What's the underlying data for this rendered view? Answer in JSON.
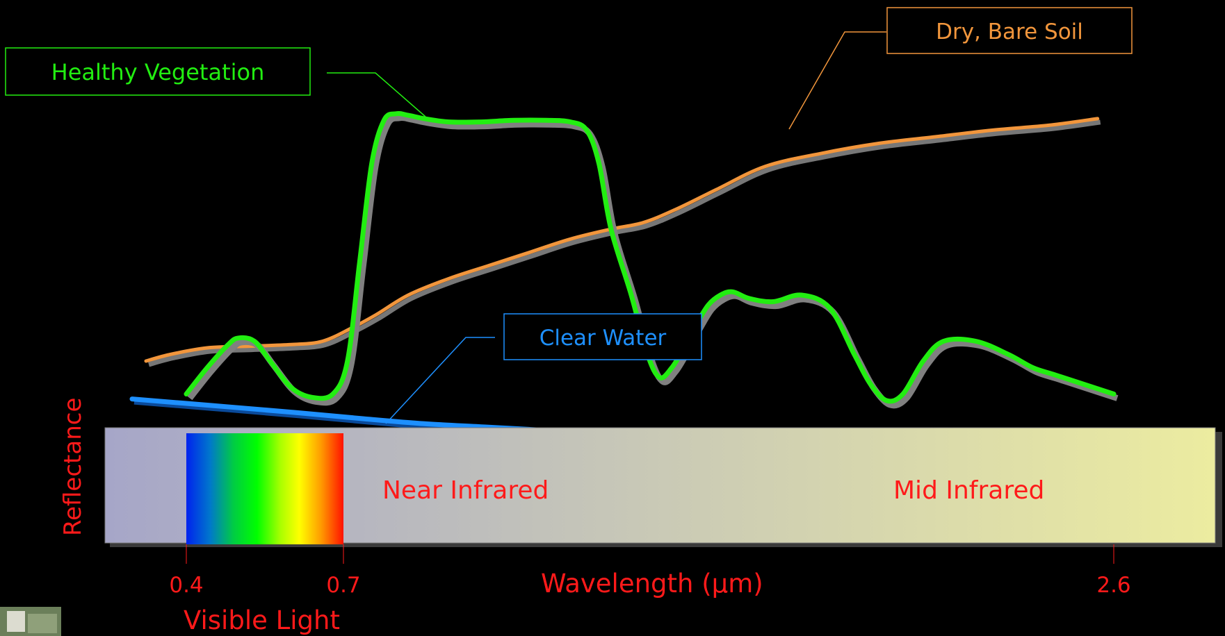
{
  "chart_data": {
    "type": "line",
    "title": "",
    "xlabel": "Wavelength (µm)",
    "ylabel": "Reflectance",
    "grid": false,
    "legend": "callout labels on curves",
    "x_ticks": [
      "0.4",
      "0.7",
      "2.6"
    ],
    "x_tick_values": [
      0.4,
      0.7,
      2.6
    ],
    "y_units": "relative reflectance (0 = bottom of plot, 1 = top)",
    "xlim": [
      0.2,
      2.6
    ],
    "ylim": [
      0,
      1
    ],
    "series": [
      {
        "name": "Healthy Vegetation",
        "color": "#22ee11",
        "x": [
          0.4,
          0.44,
          0.48,
          0.5,
          0.53,
          0.56,
          0.6,
          0.64,
          0.68,
          0.71,
          0.74,
          0.77,
          0.8,
          0.83,
          0.86,
          0.9,
          0.96,
          1.04,
          1.12,
          1.2,
          1.26,
          1.3,
          1.33,
          1.36,
          1.41,
          1.45,
          1.48,
          1.51,
          1.54,
          1.57,
          1.6,
          1.63,
          1.66,
          1.7,
          1.76,
          1.83,
          1.9,
          1.96,
          2.0,
          2.04,
          2.08,
          2.13,
          2.18,
          2.26,
          2.34,
          2.4,
          2.45,
          2.5,
          2.55,
          2.6
        ],
        "y": [
          0.1,
          0.18,
          0.25,
          0.27,
          0.26,
          0.2,
          0.12,
          0.09,
          0.1,
          0.2,
          0.5,
          0.8,
          0.93,
          0.95,
          0.945,
          0.935,
          0.925,
          0.925,
          0.93,
          0.93,
          0.925,
          0.9,
          0.8,
          0.6,
          0.4,
          0.22,
          0.15,
          0.18,
          0.24,
          0.31,
          0.37,
          0.4,
          0.41,
          0.39,
          0.38,
          0.4,
          0.36,
          0.22,
          0.13,
          0.08,
          0.1,
          0.2,
          0.26,
          0.26,
          0.22,
          0.18,
          0.16,
          0.14,
          0.12,
          0.1
        ],
        "label": "Healthy Vegetation"
      },
      {
        "name": "Dry, Bare Soil",
        "color": "#f2963c",
        "x": [
          0.3,
          0.36,
          0.44,
          0.52,
          0.6,
          0.66,
          0.72,
          0.78,
          0.86,
          0.96,
          1.06,
          1.16,
          1.26,
          1.36,
          1.44,
          1.52,
          1.62,
          1.74,
          1.88,
          2.02,
          2.16,
          2.3,
          2.44,
          2.56
        ],
        "y": [
          0.2,
          0.22,
          0.24,
          0.245,
          0.25,
          0.26,
          0.3,
          0.34,
          0.4,
          0.45,
          0.49,
          0.53,
          0.57,
          0.6,
          0.62,
          0.66,
          0.72,
          0.79,
          0.83,
          0.86,
          0.88,
          0.9,
          0.915,
          0.935
        ],
        "label": "Dry, Bare Soil"
      },
      {
        "name": "Clear Water",
        "color": "#1e90ff",
        "x": [
          0.3,
          0.45,
          0.6,
          0.75,
          0.9,
          1.05,
          1.2
        ],
        "y": [
          0.085,
          0.065,
          0.045,
          0.025,
          0.01,
          0.0,
          -0.01
        ],
        "label": "Clear Water"
      }
    ],
    "spectrum_band": {
      "regions": [
        "Near Infrared",
        "Mid Infrared"
      ],
      "visible_label": "Visible Light",
      "visible_range": [
        0.4,
        0.7
      ]
    }
  },
  "colors": {
    "background": "#000000",
    "axis_text": "#ff2020",
    "band_left": "#a6a6c8",
    "band_right": "#ececa0",
    "veg_shadow": "#808080"
  }
}
